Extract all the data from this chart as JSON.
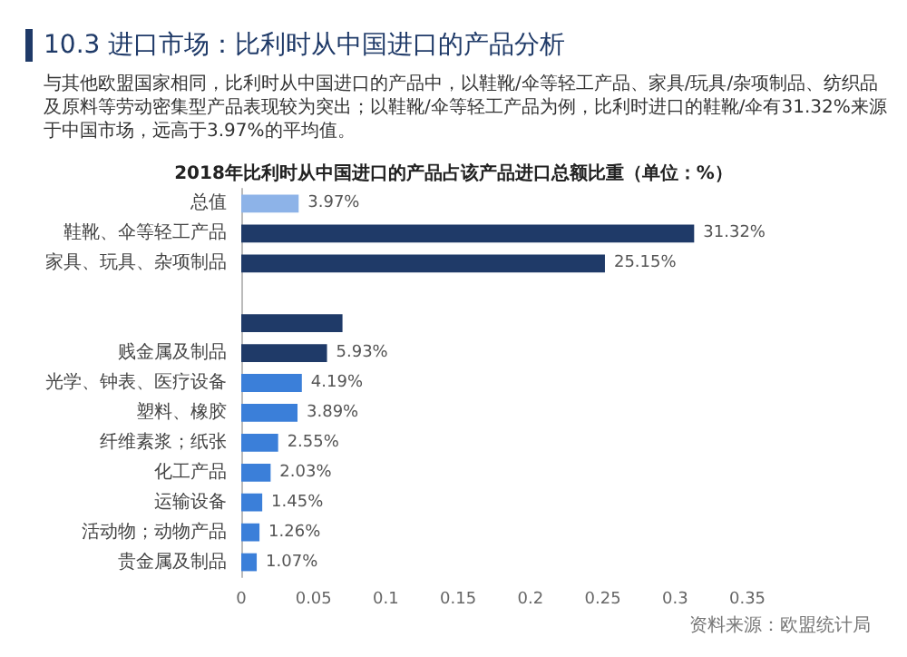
{
  "chart_data": {
    "type": "bar",
    "orientation": "horizontal",
    "title": "2018年比利时从中国进口的产品占该产品进口总额比重（单位：%）",
    "annotations": [
      "10.3 进口市场：比利时从中国进口的产品分析",
      "与其他欧盟国家相同，比利时从中国进口的产品中，以鞋靴/伞等轻工产品、家具/玩具/杂项制品、纺织品及原料等劳动密集型产品表现较为突出；以鞋靴/伞等轻工产品为例，比利时进口的鞋靴/伞有31.32%来源于中国市场，远高于3.97%的平均值。",
      "资料来源：欧盟统计局"
    ],
    "categories": [
      "总值",
      "鞋靴、伞等轻工产品",
      "家具、玩具、杂项制品",
      null,
      null,
      "贱金属及制品",
      "光学、钟表、医疗设备",
      "塑料、橡胶",
      "纤维素浆；纸张",
      "化工产品",
      "运输设备",
      "活动物；动物产品",
      "贵金属及制品"
    ],
    "values": [
      0.0397,
      0.3132,
      0.2515,
      null,
      0.07,
      0.0593,
      0.0419,
      0.0389,
      0.0255,
      0.0203,
      0.0145,
      0.0126,
      0.0107
    ],
    "value_labels": [
      "3.97%",
      "31.32%",
      "25.15%",
      null,
      null,
      "5.93%",
      "4.19%",
      "3.89%",
      "2.55%",
      "2.03%",
      "1.45%",
      "1.26%",
      "1.07%"
    ],
    "colors": [
      "#8db3e8",
      "#1f3a68",
      "#1f3a68",
      "#1f3a68",
      "#1f3a68",
      "#1f3a68",
      "#3b7fd9",
      "#3b7fd9",
      "#3b7fd9",
      "#3b7fd9",
      "#3b7fd9",
      "#3b7fd9",
      "#3b7fd9"
    ],
    "xlim": [
      0,
      0.35
    ],
    "xticks": [
      0,
      0.05,
      0.1,
      0.15,
      0.2,
      0.25,
      0.3,
      0.35
    ],
    "grid": false
  }
}
